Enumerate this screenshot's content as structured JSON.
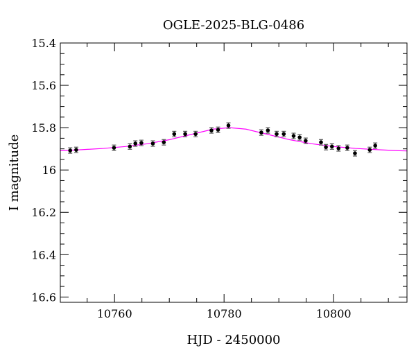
{
  "chart_data": {
    "type": "scatter",
    "title": "OGLE-2025-BLG-0486",
    "xlabel": "HJD - 2450000",
    "ylabel": "I magnitude",
    "xlim": [
      10750.1,
      10813.4
    ],
    "ylim": [
      15.4,
      16.625
    ],
    "y_inverted": true,
    "grid": false,
    "x_ticks": [
      10760,
      10780,
      10800
    ],
    "y_ticks": [
      15.4,
      15.6,
      15.8,
      16,
      16.2,
      16.4,
      16.6
    ],
    "series": [
      {
        "kind": "points",
        "color": "#000000",
        "x": [
          10751.9,
          10753.0,
          10759.9,
          10762.8,
          10763.8,
          10764.9,
          10767.0,
          10769.0,
          10770.9,
          10772.9,
          10774.8,
          10777.7,
          10778.9,
          10780.8,
          10786.8,
          10788.0,
          10789.6,
          10790.9,
          10792.7,
          10793.8,
          10794.9,
          10797.7,
          10798.6,
          10799.7,
          10800.9,
          10802.5,
          10803.9,
          10806.6,
          10807.6
        ],
        "y": [
          15.908,
          15.905,
          15.895,
          15.889,
          15.875,
          15.872,
          15.875,
          15.869,
          15.83,
          15.83,
          15.83,
          15.813,
          15.81,
          15.79,
          15.823,
          15.813,
          15.83,
          15.83,
          15.839,
          15.846,
          15.862,
          15.869,
          15.892,
          15.889,
          15.898,
          15.895,
          15.921,
          15.905,
          15.885
        ],
        "yerr": 0.013
      },
      {
        "kind": "line",
        "color": "#ff00ff",
        "x": [
          10750,
          10754,
          10758,
          10762,
          10766,
          10770,
          10774,
          10778,
          10781,
          10784,
          10788,
          10792,
          10796,
          10800,
          10804,
          10808,
          10812,
          10813.4
        ],
        "y": [
          15.909,
          15.904,
          15.898,
          15.889,
          15.876,
          15.857,
          15.832,
          15.807,
          15.8,
          15.807,
          15.832,
          15.857,
          15.876,
          15.889,
          15.898,
          15.904,
          15.909,
          15.91
        ]
      }
    ]
  }
}
